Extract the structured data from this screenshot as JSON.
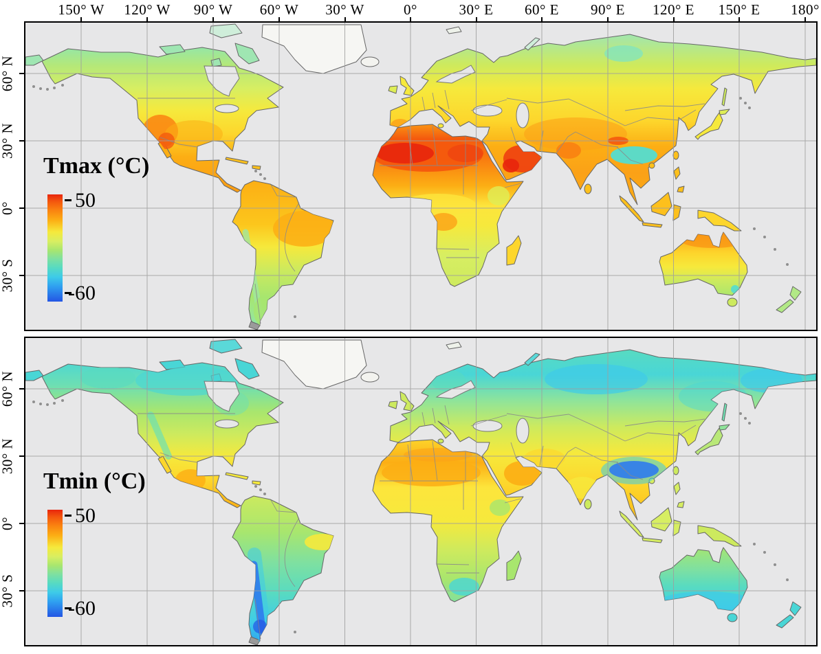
{
  "figure": {
    "background": "#ffffff",
    "ocean_color": "#e7e7e8",
    "grid_color": "#9e9e9e",
    "coast_color": "#666666",
    "country_border_color": "#8a8a8a",
    "frame_color": "#000000"
  },
  "top_axis": {
    "tick_labels": [
      "150° W",
      "120° W",
      "90° W",
      "60° W",
      "30° W",
      "0°",
      "30° E",
      "60° E",
      "90° E",
      "120° E",
      "150° E",
      "180°"
    ]
  },
  "panels": [
    {
      "id": "tmax",
      "legend_title": "Tmax (°C)",
      "colorbar": {
        "max_label": "50",
        "min_label": "-60",
        "max_value": 50,
        "min_value": -60,
        "gradient_stops": [
          "#e8250c",
          "#f4590e",
          "#fa8410",
          "#fcae14",
          "#f6e93c",
          "#d7ee62",
          "#a8e66e",
          "#7fe0a0",
          "#59dbc0",
          "#3ecbe8",
          "#2f9ff0",
          "#2456e4"
        ]
      },
      "y_axis": {
        "tick_labels": [
          "60° N",
          "30° N",
          "0°",
          "30° S"
        ]
      }
    },
    {
      "id": "tmin",
      "legend_title": "Tmin (°C)",
      "colorbar": {
        "max_label": "50",
        "min_label": "-60",
        "max_value": 50,
        "min_value": -60,
        "gradient_stops": [
          "#e8250c",
          "#f4590e",
          "#fa8410",
          "#fcae14",
          "#f6e93c",
          "#d7ee62",
          "#a8e66e",
          "#7fe0a0",
          "#59dbc0",
          "#3ecbe8",
          "#2f9ff0",
          "#2456e4"
        ]
      },
      "y_axis": {
        "tick_labels": [
          "60° N",
          "30° N",
          "0°",
          "30° S"
        ]
      }
    }
  ],
  "chart_data": {
    "type": "heatmap",
    "description_visible": "Two global raster temperature maps with shared rainbow colorbar",
    "panels": [
      {
        "title": "Tmax (°C)",
        "colorbar_range": [
          -60,
          50
        ]
      },
      {
        "title": "Tmin (°C)",
        "colorbar_range": [
          -60,
          50
        ]
      }
    ],
    "x_ticks": [
      "150° W",
      "120° W",
      "90° W",
      "60° W",
      "30° W",
      "0°",
      "30° E",
      "60° E",
      "90° E",
      "120° E",
      "150° E",
      "180°"
    ],
    "y_ticks": [
      "60° N",
      "30° N",
      "0°",
      "30° S"
    ]
  }
}
